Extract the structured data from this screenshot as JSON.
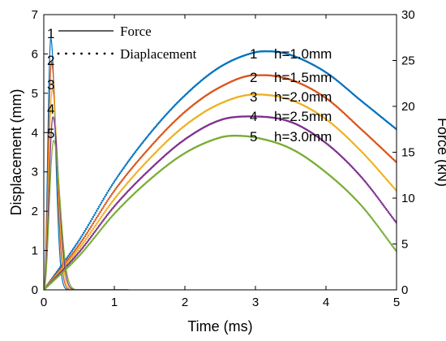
{
  "chart_data": {
    "type": "line",
    "xlabel": "Time (ms)",
    "ylabel_left": "Displacement (mm)",
    "ylabel_right": "Force (kN)",
    "xlim": [
      0,
      5
    ],
    "ylim_left": [
      0,
      7
    ],
    "ylim_right": [
      0,
      30
    ],
    "x_ticks": [
      "0",
      "1",
      "2",
      "3",
      "4",
      "5"
    ],
    "y_left_ticks": [
      "0",
      "1",
      "2",
      "3",
      "4",
      "5",
      "6",
      "7"
    ],
    "y_right_ticks": [
      "0",
      "5",
      "10",
      "15",
      "20",
      "25",
      "30"
    ],
    "legend": [
      {
        "label": "Force",
        "style": "solid"
      },
      {
        "label": "Diaplacement",
        "style": "dotted"
      }
    ],
    "series": [
      {
        "name": "h=1.0mm",
        "number": "1",
        "color": "#0072BD",
        "force": {
          "peak_x": 0.1,
          "peak_y": 6.4
        },
        "displacement": {
          "x": [
            0,
            0.5,
            1,
            1.5,
            2,
            2.5,
            3,
            3.2,
            3.5,
            4,
            4.5,
            5
          ],
          "y": [
            0,
            5.4,
            11.8,
            17.0,
            21.2,
            24.3,
            25.9,
            26.0,
            25.6,
            23.7,
            20.6,
            17.5
          ]
        }
      },
      {
        "name": "h=1.5mm",
        "number": "2",
        "color": "#D95319",
        "force": {
          "peak_x": 0.11,
          "peak_y": 5.8
        },
        "displacement": {
          "x": [
            0,
            0.5,
            1,
            1.5,
            2,
            2.5,
            3,
            3.1,
            3.5,
            4,
            4.5,
            5
          ],
          "y": [
            0,
            4.9,
            10.8,
            15.5,
            19.4,
            22.1,
            23.4,
            23.4,
            22.9,
            20.9,
            17.5,
            13.9
          ]
        }
      },
      {
        "name": "h=2.0mm",
        "number": "3",
        "color": "#EDB120",
        "force": {
          "peak_x": 0.12,
          "peak_y": 5.1
        },
        "displacement": {
          "x": [
            0,
            0.5,
            1,
            1.5,
            2,
            2.5,
            3,
            3.5,
            4,
            4.5,
            5
          ],
          "y": [
            0,
            4.5,
            9.9,
            14.3,
            17.9,
            20.3,
            21.3,
            20.7,
            18.6,
            15.1,
            10.8
          ]
        }
      },
      {
        "name": "h=2.5mm",
        "number": "4",
        "color": "#7E2F8E",
        "force": {
          "peak_x": 0.13,
          "peak_y": 4.4
        },
        "displacement": {
          "x": [
            0,
            0.5,
            1,
            1.5,
            2,
            2.5,
            2.9,
            3.5,
            4,
            4.5,
            5
          ],
          "y": [
            0,
            4.1,
            9.1,
            13.1,
            16.4,
            18.5,
            18.9,
            18.3,
            16.0,
            12.3,
            7.3
          ]
        }
      },
      {
        "name": "h=3.0mm",
        "number": "5",
        "color": "#77AC30",
        "force": {
          "peak_x": 0.14,
          "peak_y": 3.8
        },
        "displacement": {
          "x": [
            0,
            0.5,
            1,
            1.5,
            2,
            2.5,
            2.7,
            3,
            3.5,
            4,
            4.5,
            5
          ],
          "y": [
            0,
            3.7,
            8.3,
            12.0,
            14.9,
            16.6,
            16.8,
            16.6,
            15.4,
            12.8,
            9.2,
            4.2
          ]
        }
      }
    ]
  }
}
